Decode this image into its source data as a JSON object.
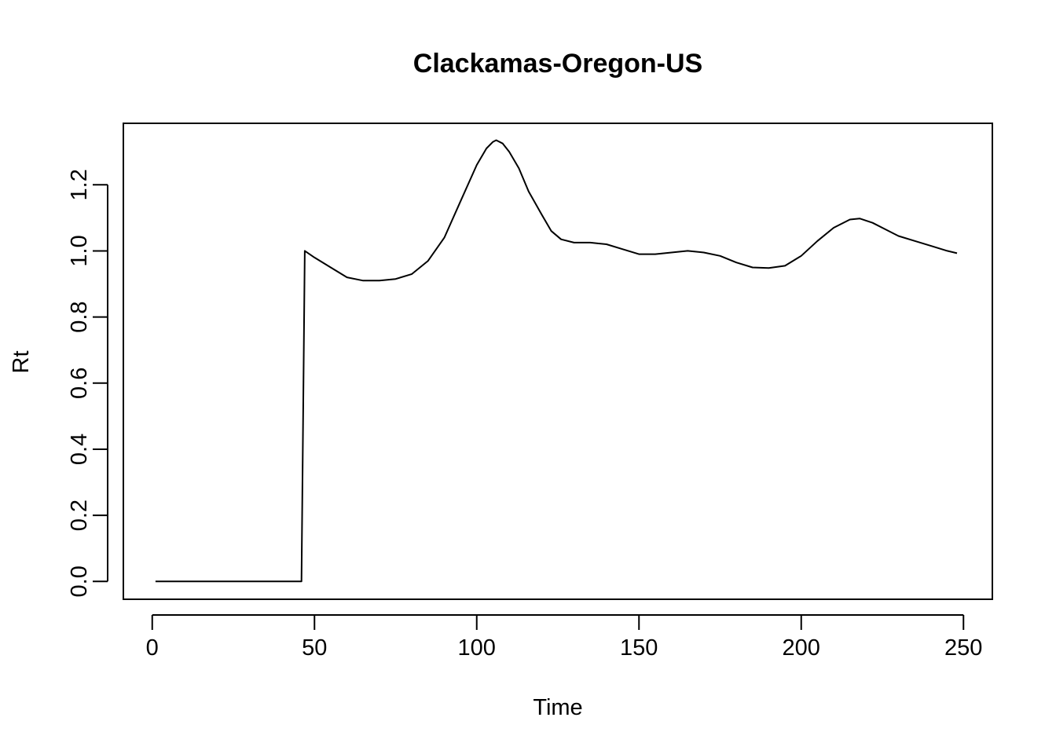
{
  "chart_data": {
    "type": "line",
    "title": "Clackamas-Oregon-US",
    "xlabel": "Time",
    "ylabel": "Rt",
    "xlim": [
      -8.9,
      258.9
    ],
    "ylim": [
      -0.054,
      1.386
    ],
    "xticks": [
      0,
      50,
      100,
      150,
      200,
      250
    ],
    "yticks": [
      0.0,
      0.2,
      0.4,
      0.6,
      0.8,
      1.0,
      1.2
    ],
    "xtick_labels": [
      "0",
      "50",
      "100",
      "150",
      "200",
      "250"
    ],
    "ytick_labels": [
      "0.0",
      "0.2",
      "0.4",
      "0.6",
      "0.8",
      "1.0",
      "1.2"
    ],
    "grid": false,
    "legend": "none",
    "series": [
      {
        "color": "#000000",
        "x": [
          1,
          10,
          20,
          30,
          40,
          46,
          47,
          50,
          55,
          60,
          65,
          70,
          75,
          80,
          85,
          90,
          95,
          100,
          103,
          105,
          106,
          108,
          110,
          113,
          116,
          120,
          123,
          126,
          130,
          135,
          140,
          145,
          150,
          155,
          160,
          165,
          170,
          175,
          180,
          185,
          190,
          195,
          200,
          205,
          210,
          215,
          218,
          222,
          226,
          230,
          235,
          240,
          245,
          248
        ],
        "values": [
          0,
          0,
          0,
          0,
          0,
          0,
          1.0,
          0.98,
          0.95,
          0.92,
          0.91,
          0.91,
          0.915,
          0.93,
          0.97,
          1.04,
          1.15,
          1.26,
          1.31,
          1.33,
          1.335,
          1.325,
          1.3,
          1.25,
          1.18,
          1.11,
          1.06,
          1.035,
          1.025,
          1.025,
          1.02,
          1.005,
          0.99,
          0.99,
          0.995,
          1.0,
          0.995,
          0.985,
          0.965,
          0.95,
          0.948,
          0.955,
          0.985,
          1.03,
          1.07,
          1.095,
          1.098,
          1.085,
          1.065,
          1.045,
          1.03,
          1.015,
          1.0,
          0.993
        ]
      }
    ]
  }
}
